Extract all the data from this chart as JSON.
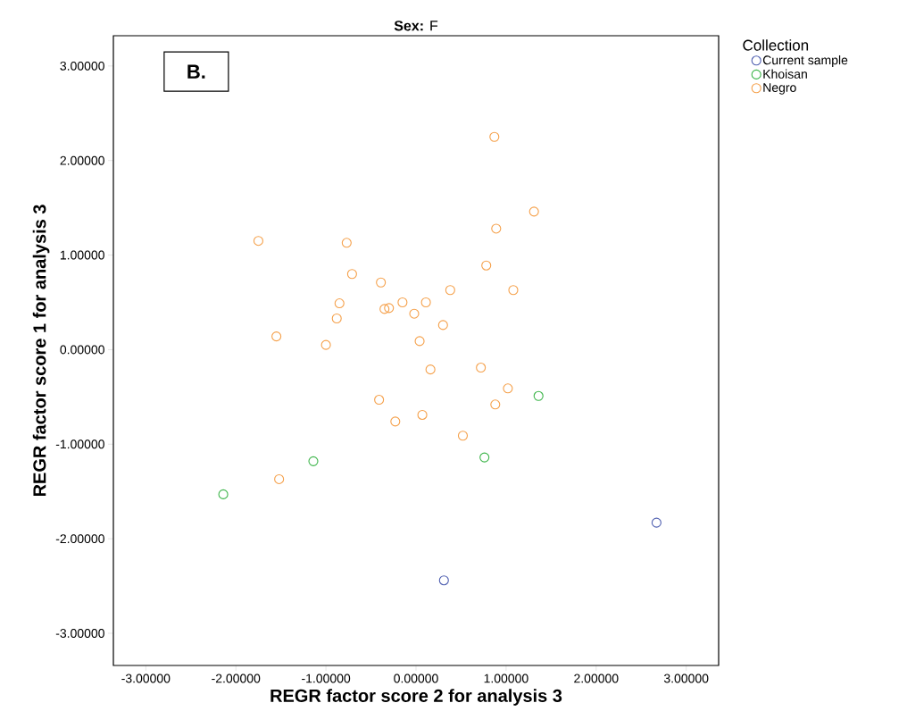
{
  "chart_data": {
    "type": "scatter",
    "title": "**Sex:** F",
    "xlabel": "REGR factor score   2 for analysis 3",
    "ylabel": "REGR factor score   1 for analysis 3",
    "legend_title": "Collection",
    "annotations": [
      "B."
    ],
    "xlim": [
      -3.36,
      3.36
    ],
    "ylim": [
      -3.34,
      3.32
    ],
    "xticks": [
      {
        "value": -3,
        "label": "-3.00000"
      },
      {
        "value": -2,
        "label": "-2.00000"
      },
      {
        "value": -1,
        "label": "-1.00000"
      },
      {
        "value": 0,
        "label": "0.00000"
      },
      {
        "value": 1,
        "label": "1.00000"
      },
      {
        "value": 2,
        "label": "2.00000"
      },
      {
        "value": 3,
        "label": "3.00000"
      }
    ],
    "yticks": [
      {
        "value": -3,
        "label": "-3.00000"
      },
      {
        "value": -2,
        "label": "-2.00000"
      },
      {
        "value": -1,
        "label": "-1.00000"
      },
      {
        "value": 0,
        "label": "0.00000"
      },
      {
        "value": 1,
        "label": "1.00000"
      },
      {
        "value": 2,
        "label": "2.00000"
      },
      {
        "value": 3,
        "label": "3.00000"
      }
    ],
    "legend": "top right",
    "marker": "circle",
    "series": [
      {
        "name": "Current sample",
        "color": "#4f5fb0",
        "x": [
          2.67,
          0.31
        ],
        "values": [
          -1.83,
          -2.44
        ]
      },
      {
        "name": "Khoisan",
        "color": "#3db54a",
        "x": [
          1.36,
          0.76,
          -1.14,
          -2.14
        ],
        "values": [
          -0.49,
          -1.14,
          -1.18,
          -1.53
        ]
      },
      {
        "name": "Negro",
        "color": "#f5a04a",
        "x": [
          0.87,
          1.31,
          0.89,
          -1.75,
          -0.77,
          -0.71,
          0.78,
          -0.39,
          0.38,
          1.08,
          -0.85,
          -0.15,
          0.11,
          -0.35,
          -0.3,
          -0.02,
          -0.88,
          0.3,
          -1.55,
          -1.0,
          0.04,
          0.16,
          0.72,
          1.02,
          -0.41,
          0.88,
          -0.23,
          0.07,
          0.52,
          -1.52
        ],
        "values": [
          2.25,
          1.46,
          1.28,
          1.15,
          1.13,
          0.8,
          0.89,
          0.71,
          0.63,
          0.63,
          0.49,
          0.5,
          0.5,
          0.43,
          0.44,
          0.38,
          0.33,
          0.26,
          0.14,
          0.05,
          0.09,
          -0.21,
          -0.19,
          -0.41,
          -0.53,
          -0.58,
          -0.76,
          -0.69,
          -0.91,
          -1.37
        ]
      }
    ]
  }
}
